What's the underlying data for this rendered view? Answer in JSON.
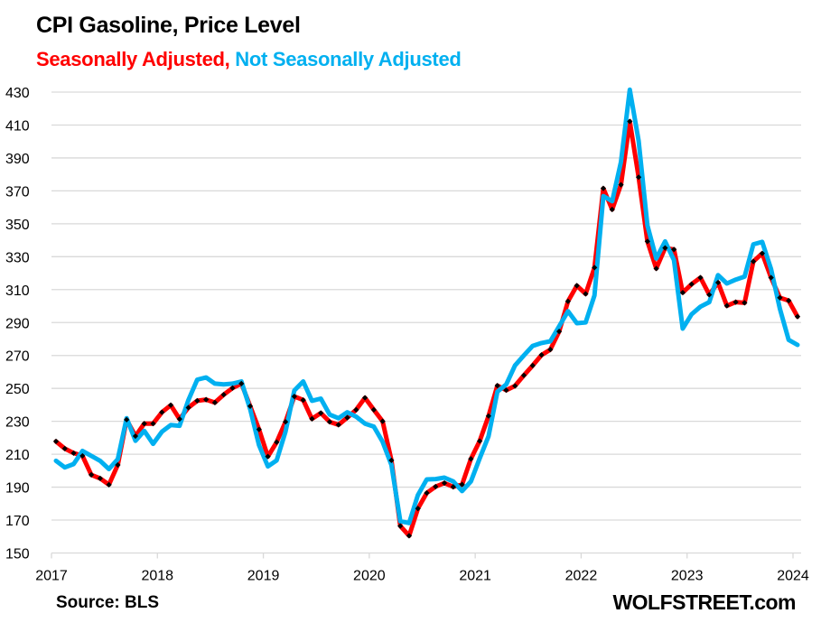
{
  "header": {
    "title": "CPI Gasoline, Price Level",
    "subtitle_sa": "Seasonally Adjusted,",
    "subtitle_nsa": "Not Seasonally Adjusted"
  },
  "footer": {
    "source": "Source: BLS",
    "brand": "WOLFSTREET.com"
  },
  "colors": {
    "seasonally_adjusted": "#ff0000",
    "not_seasonally_adjusted": "#00b0f0",
    "marker": "#000000",
    "grid": "#d9d9d9"
  },
  "chart_data": {
    "type": "line",
    "title": "CPI Gasoline, Price Level",
    "subtitle": "Seasonally Adjusted, Not Seasonally Adjusted",
    "xlabel": "",
    "ylabel": "",
    "x_start": "2017-01",
    "x_frequency": "monthly",
    "xlim": [
      2017,
      2024
    ],
    "x_ticks": [
      "2017",
      "2018",
      "2019",
      "2020",
      "2021",
      "2022",
      "2023",
      "2024"
    ],
    "ylim": [
      150,
      430
    ],
    "y_ticks": [
      "150",
      "170",
      "190",
      "210",
      "230",
      "250",
      "270",
      "290",
      "310",
      "330",
      "350",
      "370",
      "390",
      "410",
      "430"
    ],
    "grid": true,
    "legend": "subtitle (color-coded text)",
    "series": [
      {
        "name": "Seasonally Adjusted",
        "color": "#ff0000",
        "markers": true,
        "values": [
          217.8,
          213.4,
          210.7,
          209.0,
          197.5,
          195.3,
          191.5,
          203.5,
          231.0,
          221.0,
          228.6,
          228.6,
          235.5,
          239.8,
          231.4,
          238.3,
          242.5,
          243.2,
          241.4,
          246.2,
          250.2,
          252.9,
          239.2,
          225.1,
          208.6,
          217.3,
          229.7,
          245.1,
          242.9,
          231.5,
          235.0,
          229.7,
          227.9,
          232.2,
          237.0,
          244.3,
          237.0,
          230.0,
          206.3,
          166.4,
          160.5,
          177.0,
          186.5,
          190.3,
          192.5,
          190.2,
          191.6,
          207.2,
          218.0,
          233.2,
          251.7,
          248.9,
          251.5,
          257.9,
          263.9,
          270.3,
          273.6,
          284.6,
          302.9,
          312.4,
          307.4,
          323.4,
          371.5,
          358.7,
          373.7,
          412.2,
          378.3,
          339.3,
          322.8,
          335.3,
          334.4,
          308.2,
          313.3,
          317.3,
          306.9,
          314.3,
          300.2,
          302.4,
          302.0,
          327.1,
          332.0,
          317.3,
          305.1,
          303.3,
          293.6
        ]
      },
      {
        "name": "Not Seasonally Adjusted",
        "color": "#00b0f0",
        "markers": false,
        "values": [
          206.0,
          202.0,
          204.0,
          212.0,
          209.0,
          206.0,
          201.0,
          207.0,
          231.9,
          218.2,
          224.2,
          216.3,
          223.7,
          227.8,
          227.3,
          242.9,
          255.3,
          256.6,
          252.9,
          252.4,
          252.9,
          254.2,
          237.4,
          215.5,
          202.6,
          206.3,
          223.7,
          248.7,
          254.2,
          242.5,
          243.8,
          234.1,
          231.9,
          235.5,
          232.8,
          228.6,
          226.8,
          217.6,
          203.5,
          169.3,
          168.2,
          185.2,
          194.7,
          194.9,
          195.8,
          193.5,
          187.6,
          193.5,
          207.5,
          220.9,
          248.0,
          252.4,
          263.9,
          270.0,
          275.8,
          277.6,
          278.6,
          287.7,
          296.9,
          289.6,
          290.1,
          306.5,
          366.8,
          363.7,
          387.5,
          431.4,
          400.3,
          349.0,
          328.9,
          339.3,
          328.0,
          286.3,
          295.0,
          299.6,
          302.4,
          318.8,
          313.7,
          316.1,
          317.9,
          337.5,
          339.0,
          322.5,
          298.3,
          279.5,
          276.4
        ]
      }
    ]
  }
}
